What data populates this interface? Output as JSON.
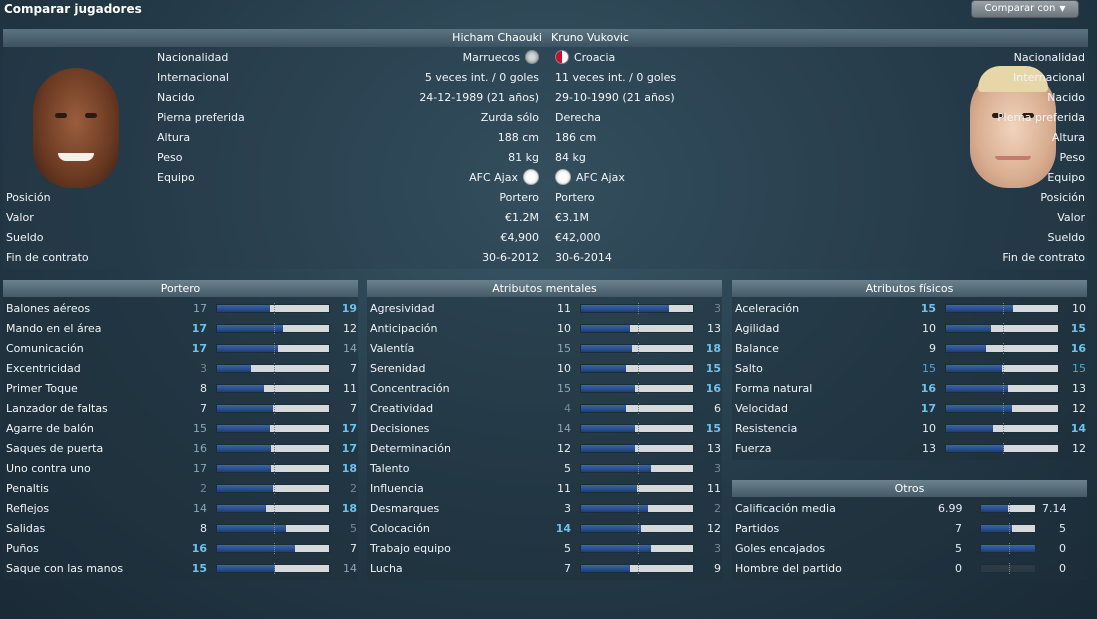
{
  "header": {
    "title": "Comparar jugadores",
    "compare_button": "Comparar con",
    "compare_caret": "▼"
  },
  "players": {
    "left_name": "Hicham Chaouki",
    "right_name": "Kruno Vukovic"
  },
  "info": [
    {
      "label": "Nacionalidad",
      "left": "Marruecos",
      "right": "Croacia",
      "icon": "flag"
    },
    {
      "label": "Internacional",
      "left": "5 veces int. / 0 goles",
      "right": "11 veces int. / 0 goles"
    },
    {
      "label": "Nacido",
      "left": "24-12-1989 (21 años)",
      "right": "29-10-1990 (21 años)"
    },
    {
      "label": "Pierna preferida",
      "left": "Zurda sólo",
      "right": "Derecha"
    },
    {
      "label": "Altura",
      "left": "188 cm",
      "right": "186 cm"
    },
    {
      "label": "Peso",
      "left": "81 kg",
      "right": "84 kg"
    },
    {
      "label": "Equipo",
      "left": "AFC Ajax",
      "right": "AFC Ajax",
      "icon": "club"
    },
    {
      "label": "Posición",
      "left": "Portero",
      "right": "Portero"
    },
    {
      "label": "Valor",
      "left": "€1.2M",
      "right": "€3.1M"
    },
    {
      "label": "Sueldo",
      "left": "€4,900",
      "right": "€42,000"
    },
    {
      "label": "Fin de contrato",
      "left": "30-6-2012",
      "right": "30-6-2014"
    }
  ],
  "panels": {
    "portero": {
      "title": "Portero",
      "rows": [
        {
          "name": "Balones aéreos",
          "a": 17,
          "b": 19
        },
        {
          "name": "Mando en el área",
          "a": 17,
          "b": 12
        },
        {
          "name": "Comunicación",
          "a": 17,
          "b": 14
        },
        {
          "name": "Excentricidad",
          "a": 3,
          "b": 7
        },
        {
          "name": "Primer Toque",
          "a": 8,
          "b": 11
        },
        {
          "name": "Lanzador de faltas",
          "a": 7,
          "b": 7
        },
        {
          "name": "Agarre de balón",
          "a": 15,
          "b": 17
        },
        {
          "name": "Saques de puerta",
          "a": 16,
          "b": 17
        },
        {
          "name": "Uno contra uno",
          "a": 17,
          "b": 18
        },
        {
          "name": "Penaltis",
          "a": 2,
          "b": 2
        },
        {
          "name": "Reflejos",
          "a": 14,
          "b": 18
        },
        {
          "name": "Salidas",
          "a": 8,
          "b": 5
        },
        {
          "name": "Puños",
          "a": 16,
          "b": 7
        },
        {
          "name": "Saque con las manos",
          "a": 15,
          "b": 14
        }
      ]
    },
    "mentales": {
      "title": "Atributos mentales",
      "rows": [
        {
          "name": "Agresividad",
          "a": 11,
          "b": 3
        },
        {
          "name": "Anticipación",
          "a": 10,
          "b": 13
        },
        {
          "name": "Valentía",
          "a": 15,
          "b": 18
        },
        {
          "name": "Serenidad",
          "a": 10,
          "b": 15
        },
        {
          "name": "Concentración",
          "a": 15,
          "b": 16
        },
        {
          "name": "Creatividad",
          "a": 4,
          "b": 6
        },
        {
          "name": "Decisiones",
          "a": 14,
          "b": 15
        },
        {
          "name": "Determinación",
          "a": 12,
          "b": 13
        },
        {
          "name": "Talento",
          "a": 5,
          "b": 3
        },
        {
          "name": "Influencia",
          "a": 11,
          "b": 11
        },
        {
          "name": "Desmarques",
          "a": 3,
          "b": 2
        },
        {
          "name": "Colocación",
          "a": 14,
          "b": 12
        },
        {
          "name": "Trabajo equipo",
          "a": 5,
          "b": 3
        },
        {
          "name": "Lucha",
          "a": 7,
          "b": 9
        }
      ]
    },
    "fisicos": {
      "title": "Atributos físicos",
      "rows": [
        {
          "name": "Aceleración",
          "a": 15,
          "b": 10
        },
        {
          "name": "Agilidad",
          "a": 10,
          "b": 15
        },
        {
          "name": "Balance",
          "a": 9,
          "b": 16
        },
        {
          "name": "Salto",
          "a": 15,
          "b": 15
        },
        {
          "name": "Forma natural",
          "a": 16,
          "b": 13
        },
        {
          "name": "Velocidad",
          "a": 17,
          "b": 12
        },
        {
          "name": "Resistencia",
          "a": 10,
          "b": 14
        },
        {
          "name": "Fuerza",
          "a": 13,
          "b": 12
        }
      ]
    },
    "otros": {
      "title": "Otros",
      "rows": [
        {
          "name": "Calificación media",
          "a": "6.99",
          "b": "7.14",
          "share": 0.495
        },
        {
          "name": "Partidos",
          "a": "7",
          "b": "5",
          "share": 0.58
        },
        {
          "name": "Goles encajados",
          "a": "5",
          "b": "0",
          "share": 1.0
        },
        {
          "name": "Hombre del partido",
          "a": "0",
          "b": "0",
          "share": 0.0
        }
      ]
    }
  },
  "colors": {
    "bar_fill": "#2a4f90",
    "bar_empty": "#d6d9db",
    "highlight": "#6ec3ee",
    "header_band": "#4e6674"
  }
}
